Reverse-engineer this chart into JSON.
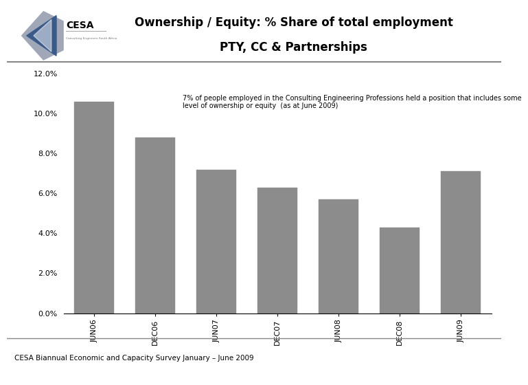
{
  "title_line1": "Ownership / Equity: % Share of total employment",
  "title_line2": "PTY, CC & Partnerships",
  "categories": [
    "JUN06",
    "DEC06",
    "JUN07",
    "DEC07",
    "JUN08",
    "DEC08",
    "JUN09"
  ],
  "values": [
    0.106,
    0.088,
    0.072,
    0.063,
    0.057,
    0.043,
    0.071
  ],
  "bar_color": "#8c8c8c",
  "bar_edge_color": "#8c8c8c",
  "ylim": [
    0,
    0.12
  ],
  "yticks": [
    0.0,
    0.02,
    0.04,
    0.06,
    0.08,
    0.1,
    0.12
  ],
  "annotation_line1": "7% of people employed in the Consulting Engineering Professions held a position that includes some",
  "annotation_line2": "level of ownership or equity  (as at June 2009)",
  "footer_text": "CESA Biannual Economic and Capacity Survey January – June 2009",
  "title_fontsize": 12,
  "tick_fontsize": 8,
  "annotation_fontsize": 7,
  "footer_fontsize": 7.5,
  "background_color": "#ffffff",
  "header_sep_color": "#888888",
  "footer_sep_color": "#888888",
  "logo_text_color": "#000000",
  "logo_sub_color": "#777777",
  "logo_blue": "#3a5a8a",
  "logo_gray": "#a0a8b8"
}
